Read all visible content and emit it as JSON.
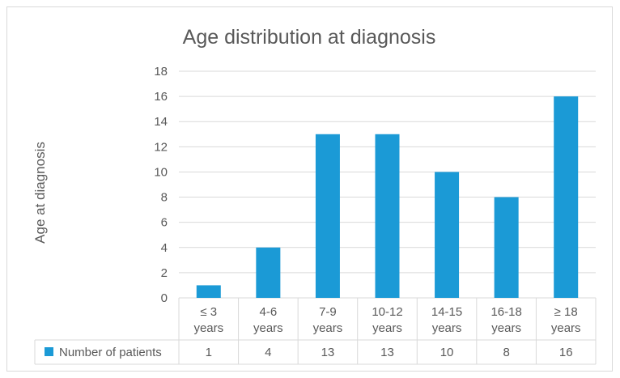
{
  "chart_data": {
    "type": "bar",
    "title": "Age distribution at diagnosis",
    "ylabel": "Age at diagnosis",
    "xlabel": "",
    "categories": [
      [
        "≤ 3",
        "years"
      ],
      [
        "4-6",
        "years"
      ],
      [
        "7-9",
        "years"
      ],
      [
        "10-12",
        "years"
      ],
      [
        "14-15",
        "years"
      ],
      [
        "16-18",
        "years"
      ],
      [
        "≥ 18",
        "years"
      ]
    ],
    "series": [
      {
        "name": "Number of patients",
        "values": [
          1,
          4,
          13,
          13,
          10,
          8,
          16
        ],
        "color": "#1b9ad6"
      }
    ],
    "ylim": [
      0,
      18
    ],
    "yticks": [
      0,
      2,
      4,
      6,
      8,
      10,
      12,
      14,
      16,
      18
    ],
    "grid": true,
    "legend": "data-table-left",
    "data_table": true
  }
}
